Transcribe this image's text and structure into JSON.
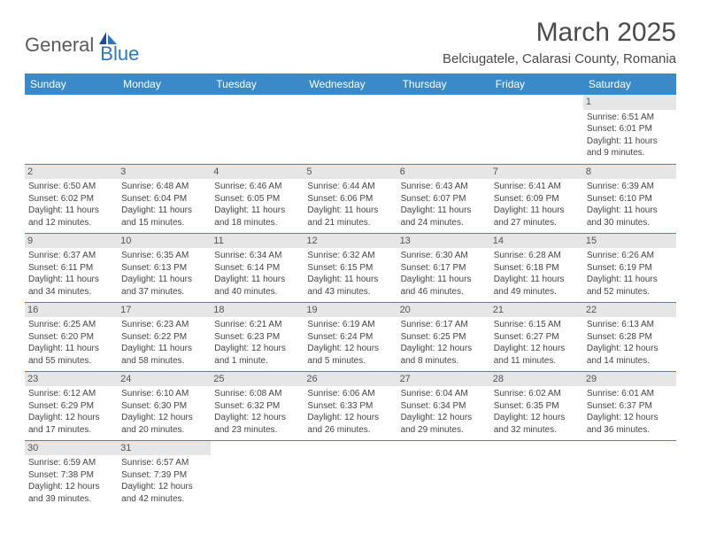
{
  "logo": {
    "general": "General",
    "blue": "Blue",
    "icon_color": "#2b78c2"
  },
  "title": "March 2025",
  "location": "Belciugatele, Calarasi County, Romania",
  "dayHeaders": [
    "Sunday",
    "Monday",
    "Tuesday",
    "Wednesday",
    "Thursday",
    "Friday",
    "Saturday"
  ],
  "colors": {
    "header_bg": "#3a8ac9",
    "header_text": "#ffffff",
    "rule": "#3a8ac9",
    "daynum_bg": "#e6e6e6",
    "text": "#444444",
    "title_text": "#4a4a4a"
  },
  "weeks": [
    [
      null,
      null,
      null,
      null,
      null,
      null,
      {
        "n": "1",
        "sunrise": "Sunrise: 6:51 AM",
        "sunset": "Sunset: 6:01 PM",
        "daylight": "Daylight: 11 hours and 9 minutes."
      }
    ],
    [
      {
        "n": "2",
        "sunrise": "Sunrise: 6:50 AM",
        "sunset": "Sunset: 6:02 PM",
        "daylight": "Daylight: 11 hours and 12 minutes."
      },
      {
        "n": "3",
        "sunrise": "Sunrise: 6:48 AM",
        "sunset": "Sunset: 6:04 PM",
        "daylight": "Daylight: 11 hours and 15 minutes."
      },
      {
        "n": "4",
        "sunrise": "Sunrise: 6:46 AM",
        "sunset": "Sunset: 6:05 PM",
        "daylight": "Daylight: 11 hours and 18 minutes."
      },
      {
        "n": "5",
        "sunrise": "Sunrise: 6:44 AM",
        "sunset": "Sunset: 6:06 PM",
        "daylight": "Daylight: 11 hours and 21 minutes."
      },
      {
        "n": "6",
        "sunrise": "Sunrise: 6:43 AM",
        "sunset": "Sunset: 6:07 PM",
        "daylight": "Daylight: 11 hours and 24 minutes."
      },
      {
        "n": "7",
        "sunrise": "Sunrise: 6:41 AM",
        "sunset": "Sunset: 6:09 PM",
        "daylight": "Daylight: 11 hours and 27 minutes."
      },
      {
        "n": "8",
        "sunrise": "Sunrise: 6:39 AM",
        "sunset": "Sunset: 6:10 PM",
        "daylight": "Daylight: 11 hours and 30 minutes."
      }
    ],
    [
      {
        "n": "9",
        "sunrise": "Sunrise: 6:37 AM",
        "sunset": "Sunset: 6:11 PM",
        "daylight": "Daylight: 11 hours and 34 minutes."
      },
      {
        "n": "10",
        "sunrise": "Sunrise: 6:35 AM",
        "sunset": "Sunset: 6:13 PM",
        "daylight": "Daylight: 11 hours and 37 minutes."
      },
      {
        "n": "11",
        "sunrise": "Sunrise: 6:34 AM",
        "sunset": "Sunset: 6:14 PM",
        "daylight": "Daylight: 11 hours and 40 minutes."
      },
      {
        "n": "12",
        "sunrise": "Sunrise: 6:32 AM",
        "sunset": "Sunset: 6:15 PM",
        "daylight": "Daylight: 11 hours and 43 minutes."
      },
      {
        "n": "13",
        "sunrise": "Sunrise: 6:30 AM",
        "sunset": "Sunset: 6:17 PM",
        "daylight": "Daylight: 11 hours and 46 minutes."
      },
      {
        "n": "14",
        "sunrise": "Sunrise: 6:28 AM",
        "sunset": "Sunset: 6:18 PM",
        "daylight": "Daylight: 11 hours and 49 minutes."
      },
      {
        "n": "15",
        "sunrise": "Sunrise: 6:26 AM",
        "sunset": "Sunset: 6:19 PM",
        "daylight": "Daylight: 11 hours and 52 minutes."
      }
    ],
    [
      {
        "n": "16",
        "sunrise": "Sunrise: 6:25 AM",
        "sunset": "Sunset: 6:20 PM",
        "daylight": "Daylight: 11 hours and 55 minutes."
      },
      {
        "n": "17",
        "sunrise": "Sunrise: 6:23 AM",
        "sunset": "Sunset: 6:22 PM",
        "daylight": "Daylight: 11 hours and 58 minutes."
      },
      {
        "n": "18",
        "sunrise": "Sunrise: 6:21 AM",
        "sunset": "Sunset: 6:23 PM",
        "daylight": "Daylight: 12 hours and 1 minute."
      },
      {
        "n": "19",
        "sunrise": "Sunrise: 6:19 AM",
        "sunset": "Sunset: 6:24 PM",
        "daylight": "Daylight: 12 hours and 5 minutes."
      },
      {
        "n": "20",
        "sunrise": "Sunrise: 6:17 AM",
        "sunset": "Sunset: 6:25 PM",
        "daylight": "Daylight: 12 hours and 8 minutes."
      },
      {
        "n": "21",
        "sunrise": "Sunrise: 6:15 AM",
        "sunset": "Sunset: 6:27 PM",
        "daylight": "Daylight: 12 hours and 11 minutes."
      },
      {
        "n": "22",
        "sunrise": "Sunrise: 6:13 AM",
        "sunset": "Sunset: 6:28 PM",
        "daylight": "Daylight: 12 hours and 14 minutes."
      }
    ],
    [
      {
        "n": "23",
        "sunrise": "Sunrise: 6:12 AM",
        "sunset": "Sunset: 6:29 PM",
        "daylight": "Daylight: 12 hours and 17 minutes."
      },
      {
        "n": "24",
        "sunrise": "Sunrise: 6:10 AM",
        "sunset": "Sunset: 6:30 PM",
        "daylight": "Daylight: 12 hours and 20 minutes."
      },
      {
        "n": "25",
        "sunrise": "Sunrise: 6:08 AM",
        "sunset": "Sunset: 6:32 PM",
        "daylight": "Daylight: 12 hours and 23 minutes."
      },
      {
        "n": "26",
        "sunrise": "Sunrise: 6:06 AM",
        "sunset": "Sunset: 6:33 PM",
        "daylight": "Daylight: 12 hours and 26 minutes."
      },
      {
        "n": "27",
        "sunrise": "Sunrise: 6:04 AM",
        "sunset": "Sunset: 6:34 PM",
        "daylight": "Daylight: 12 hours and 29 minutes."
      },
      {
        "n": "28",
        "sunrise": "Sunrise: 6:02 AM",
        "sunset": "Sunset: 6:35 PM",
        "daylight": "Daylight: 12 hours and 32 minutes."
      },
      {
        "n": "29",
        "sunrise": "Sunrise: 6:01 AM",
        "sunset": "Sunset: 6:37 PM",
        "daylight": "Daylight: 12 hours and 36 minutes."
      }
    ],
    [
      {
        "n": "30",
        "sunrise": "Sunrise: 6:59 AM",
        "sunset": "Sunset: 7:38 PM",
        "daylight": "Daylight: 12 hours and 39 minutes."
      },
      {
        "n": "31",
        "sunrise": "Sunrise: 6:57 AM",
        "sunset": "Sunset: 7:39 PM",
        "daylight": "Daylight: 12 hours and 42 minutes."
      },
      null,
      null,
      null,
      null,
      null
    ]
  ]
}
